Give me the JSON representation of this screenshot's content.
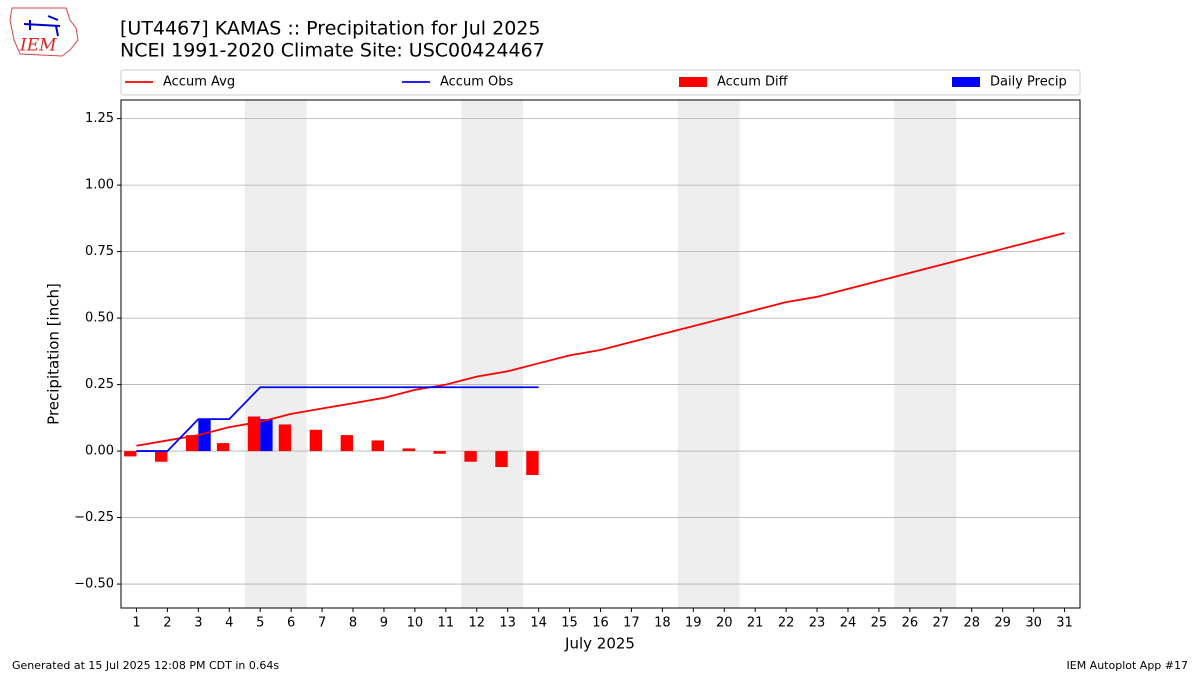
{
  "logo": "IEM",
  "footer": {
    "left": "Generated at 15 Jul 2025 12:08 PM CDT in 0.64s",
    "right": "IEM Autoplot App #17"
  },
  "chart_data": {
    "type": "bar",
    "title": "[UT4467] KAMAS :: Precipitation for Jul 2025",
    "subtitle": "NCEI 1991-2020 Climate Site: USC00424467",
    "x_label": "July 2025",
    "y_label": "Precipitation [inch]",
    "x": [
      1,
      2,
      3,
      4,
      5,
      6,
      7,
      8,
      9,
      10,
      11,
      12,
      13,
      14,
      15,
      16,
      17,
      18,
      19,
      20,
      21,
      22,
      23,
      24,
      25,
      26,
      27,
      28,
      29,
      30,
      31
    ],
    "xlim": [
      0.5,
      31.5
    ],
    "xticks": [
      1,
      2,
      3,
      4,
      5,
      6,
      7,
      8,
      9,
      10,
      11,
      12,
      13,
      14,
      15,
      16,
      17,
      18,
      19,
      20,
      21,
      22,
      23,
      24,
      25,
      26,
      27,
      28,
      29,
      30,
      31
    ],
    "ylim": [
      -0.59,
      1.32
    ],
    "yticks": [
      {
        "value": -0.5,
        "label": "−0.50"
      },
      {
        "value": -0.25,
        "label": "−0.25"
      },
      {
        "value": 0,
        "label": "0.00"
      },
      {
        "value": 0.25,
        "label": "0.25"
      },
      {
        "value": 0.5,
        "label": "0.50"
      },
      {
        "value": 0.75,
        "label": "0.75"
      },
      {
        "value": 1,
        "label": "1.00"
      },
      {
        "value": 1.25,
        "label": "1.25"
      }
    ],
    "grid": true,
    "shaded_ranges": [
      [
        4.5,
        6.5
      ],
      [
        11.5,
        13.5
      ],
      [
        18.5,
        20.5
      ],
      [
        25.5,
        27.5
      ]
    ],
    "shade_color": "#eeeeee",
    "legend": "top",
    "series": [
      {
        "name": "Accum Avg",
        "type": "line",
        "color": "#ff0000",
        "values": [
          0.02,
          0.04,
          0.06,
          0.09,
          0.11,
          0.14,
          0.16,
          0.18,
          0.2,
          0.23,
          0.25,
          0.28,
          0.3,
          0.33,
          0.36,
          0.38,
          0.41,
          0.44,
          0.47,
          0.5,
          0.53,
          0.56,
          0.58,
          0.61,
          0.64,
          0.67,
          0.7,
          0.73,
          0.76,
          0.79,
          0.82
        ]
      },
      {
        "name": "Accum Obs",
        "type": "line",
        "color": "#0000ff",
        "values": [
          0,
          0,
          0.12,
          0.12,
          0.24,
          0.24,
          0.24,
          0.24,
          0.24,
          0.24,
          0.24,
          0.24,
          0.24,
          0.24,
          null,
          null,
          null,
          null,
          null,
          null,
          null,
          null,
          null,
          null,
          null,
          null,
          null,
          null,
          null,
          null,
          null
        ]
      },
      {
        "name": "Accum Diff",
        "type": "bar",
        "side": "left",
        "color": "#ff0000",
        "values": [
          -0.02,
          -0.04,
          0.06,
          0.03,
          0.13,
          0.1,
          0.08,
          0.06,
          0.04,
          0.01,
          -0.01,
          -0.04,
          -0.06,
          -0.09,
          null,
          null,
          null,
          null,
          null,
          null,
          null,
          null,
          null,
          null,
          null,
          null,
          null,
          null,
          null,
          null,
          null
        ]
      },
      {
        "name": "Daily Precip",
        "type": "bar",
        "side": "right",
        "color": "#0000ff",
        "values": [
          0,
          0,
          0.12,
          0,
          0.12,
          0,
          0,
          0,
          0,
          0,
          0,
          0,
          0,
          0,
          null,
          null,
          null,
          null,
          null,
          null,
          null,
          null,
          null,
          null,
          null,
          null,
          null,
          null,
          null,
          null,
          null
        ]
      }
    ]
  }
}
